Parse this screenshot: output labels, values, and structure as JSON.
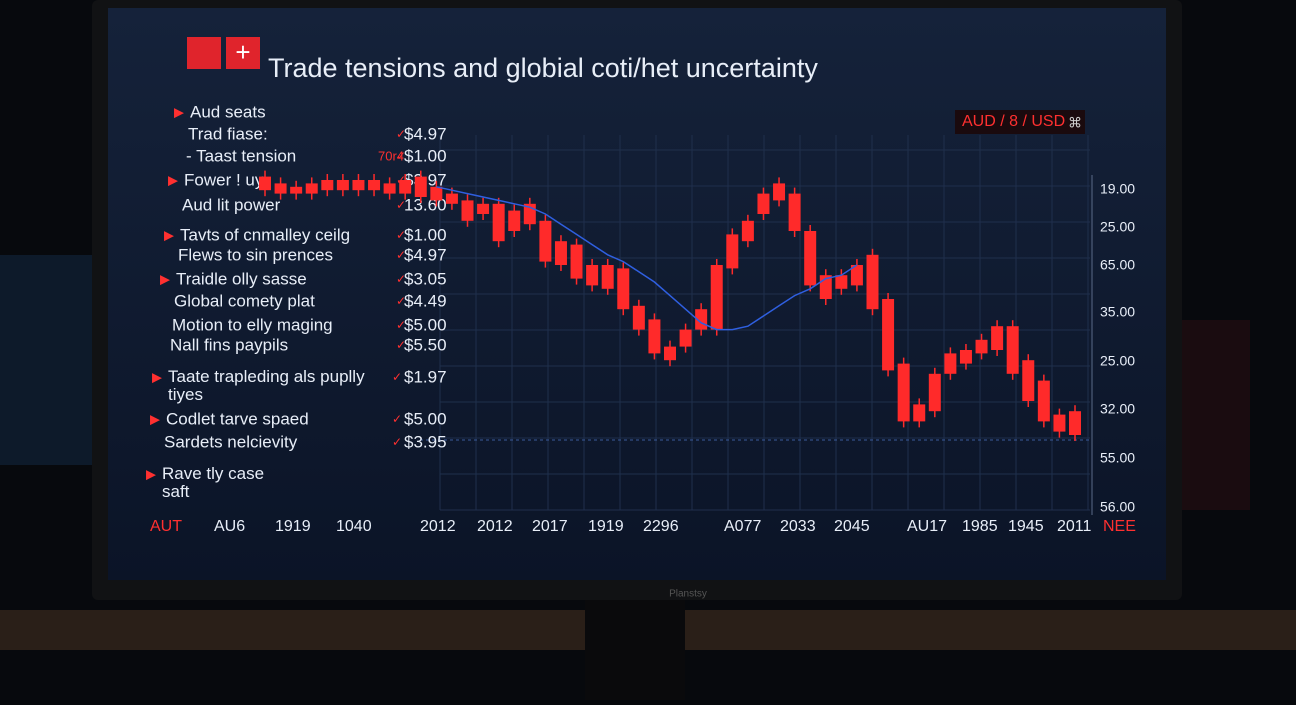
{
  "screen": {
    "title": "Trade tensions and globial coti/het uncertainty",
    "pair": "AUD / 8 / USD",
    "pair_icon": "⌘",
    "brand": "Planstsy"
  },
  "sidebar": {
    "items": [
      {
        "label": "Aud seats"
      },
      {
        "label": "Trad fiase:",
        "price": "$4.97"
      },
      {
        "label": "- Taast tension",
        "tag": "70r4",
        "price": "$1.00"
      },
      {
        "label": "Fower ! uy",
        "price": "$3.97"
      },
      {
        "label": "Aud lit power",
        "price": "13.60"
      },
      {
        "label": "Tavts of cnmalley ceilg",
        "price": "$1.00"
      },
      {
        "label": "Flews to sin prences",
        "price": "$4.97"
      },
      {
        "label": "Traidle olly sasse",
        "price": "$3.05"
      },
      {
        "label": "Global comety plat",
        "price": "$4.49"
      },
      {
        "label": "Motion to elly maging",
        "price": "$5.00"
      },
      {
        "label": "Nall fins paypils",
        "price": "$5.50"
      },
      {
        "label": "Taate trapleding als puplly tiyes",
        "price": "$1.97"
      },
      {
        "label": "Codlet tarve spaed",
        "price": "$5.00"
      },
      {
        "label": "Sardets nelcievity",
        "price": "$3.95"
      },
      {
        "label": "Rave tly case saft"
      }
    ]
  },
  "chart": {
    "y_labels": [
      "19.00",
      "25.00",
      "65.00",
      "35.00",
      "25.00",
      "32.00",
      "55.00",
      "56.00"
    ],
    "x_labels": [
      "AUT",
      "AU6",
      "1919",
      "1040",
      "2012",
      "2012",
      "2017",
      "1919",
      "2296",
      "A077",
      "2033",
      "2045",
      "AU17",
      "1985",
      "1945",
      "2011",
      "NEE"
    ],
    "candles": [
      [
        101,
        97
      ],
      [
        99,
        96
      ],
      [
        98,
        96
      ],
      [
        99,
        96
      ],
      [
        100,
        97
      ],
      [
        100,
        97
      ],
      [
        100,
        97
      ],
      [
        100,
        97
      ],
      [
        99,
        96
      ],
      [
        100,
        96
      ],
      [
        101,
        95
      ],
      [
        98,
        94
      ],
      [
        96,
        93
      ],
      [
        94,
        88
      ],
      [
        93,
        90
      ],
      [
        93,
        82
      ],
      [
        91,
        85
      ],
      [
        93,
        87
      ],
      [
        88,
        76
      ],
      [
        82,
        75
      ],
      [
        81,
        71
      ],
      [
        75,
        69
      ],
      [
        75,
        68
      ],
      [
        74,
        62
      ],
      [
        63,
        56
      ],
      [
        59,
        49
      ],
      [
        51,
        47
      ],
      [
        56,
        51
      ],
      [
        62,
        56
      ],
      [
        75,
        56
      ],
      [
        84,
        74
      ],
      [
        88,
        82
      ],
      [
        96,
        90
      ],
      [
        99,
        94
      ],
      [
        96,
        85
      ],
      [
        85,
        69
      ],
      [
        72,
        65
      ],
      [
        72,
        68
      ],
      [
        75,
        69
      ],
      [
        78,
        62
      ],
      [
        65,
        44
      ],
      [
        46,
        29
      ],
      [
        34,
        29
      ],
      [
        43,
        32
      ],
      [
        49,
        43
      ],
      [
        50,
        46
      ],
      [
        53,
        49
      ],
      [
        57,
        50
      ],
      [
        57,
        43
      ],
      [
        47,
        35
      ],
      [
        41,
        29
      ],
      [
        31,
        26
      ],
      [
        32,
        25
      ]
    ],
    "ma": [
      null,
      null,
      null,
      null,
      null,
      null,
      null,
      null,
      null,
      null,
      null,
      98,
      97,
      96,
      95,
      94,
      93,
      92,
      90,
      87,
      84,
      81,
      78,
      76,
      73,
      70,
      66,
      62,
      58,
      56,
      56,
      57,
      60,
      63,
      66,
      68,
      71,
      72,
      75,
      null,
      null,
      null,
      null,
      null,
      null,
      null,
      null,
      null,
      null,
      null,
      null,
      null,
      null
    ],
    "candle_color": "#ff2a2a",
    "ma_color": "#2f5fe0"
  }
}
